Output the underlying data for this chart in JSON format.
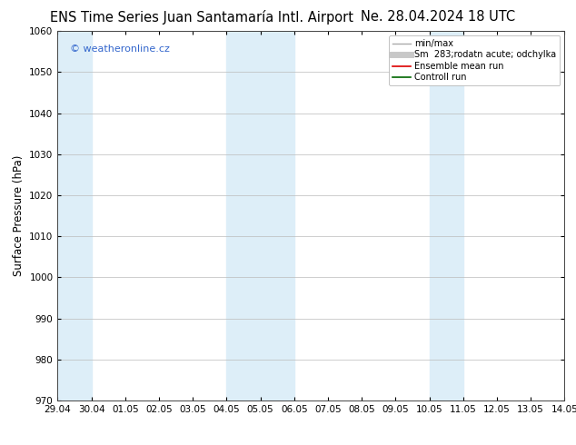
{
  "title_left": "ENS Time Series Juan Santamaría Intl. Airport",
  "title_right": "Ne. 28.04.2024 18 UTC",
  "ylabel": "Surface Pressure (hPa)",
  "ylim": [
    970,
    1060
  ],
  "yticks": [
    970,
    980,
    990,
    1000,
    1010,
    1020,
    1030,
    1040,
    1050,
    1060
  ],
  "x_labels": [
    "29.04",
    "30.04",
    "01.05",
    "02.05",
    "03.05",
    "04.05",
    "05.05",
    "06.05",
    "07.05",
    "08.05",
    "09.05",
    "10.05",
    "11.05",
    "12.05",
    "13.05",
    "14.05"
  ],
  "x_values": [
    0,
    1,
    2,
    3,
    4,
    5,
    6,
    7,
    8,
    9,
    10,
    11,
    12,
    13,
    14,
    15
  ],
  "xlim": [
    0,
    15
  ],
  "shaded_bands": [
    {
      "xmin": 0,
      "xmax": 1,
      "color": "#ddeef8",
      "alpha": 1.0
    },
    {
      "xmin": 5,
      "xmax": 7,
      "color": "#ddeef8",
      "alpha": 1.0
    },
    {
      "xmin": 11,
      "xmax": 12,
      "color": "#ddeef8",
      "alpha": 1.0
    }
  ],
  "legend_items": [
    {
      "label": "min/max",
      "color": "#aaaaaa",
      "lw": 1.0
    },
    {
      "label": "Sm  283;rodatn acute; odchylka",
      "color": "#c8c8c8",
      "lw": 5
    },
    {
      "label": "Ensemble mean run",
      "color": "#dd0000",
      "lw": 1.2
    },
    {
      "label": "Controll run",
      "color": "#006600",
      "lw": 1.2
    }
  ],
  "watermark_text": "© weatheronline.cz",
  "watermark_color": "#3366cc",
  "bg_color": "#ffffff",
  "grid_color": "#bbbbbb",
  "title_fontsize": 10.5,
  "tick_fontsize": 7.5,
  "ylabel_fontsize": 8.5,
  "legend_fontsize": 7
}
